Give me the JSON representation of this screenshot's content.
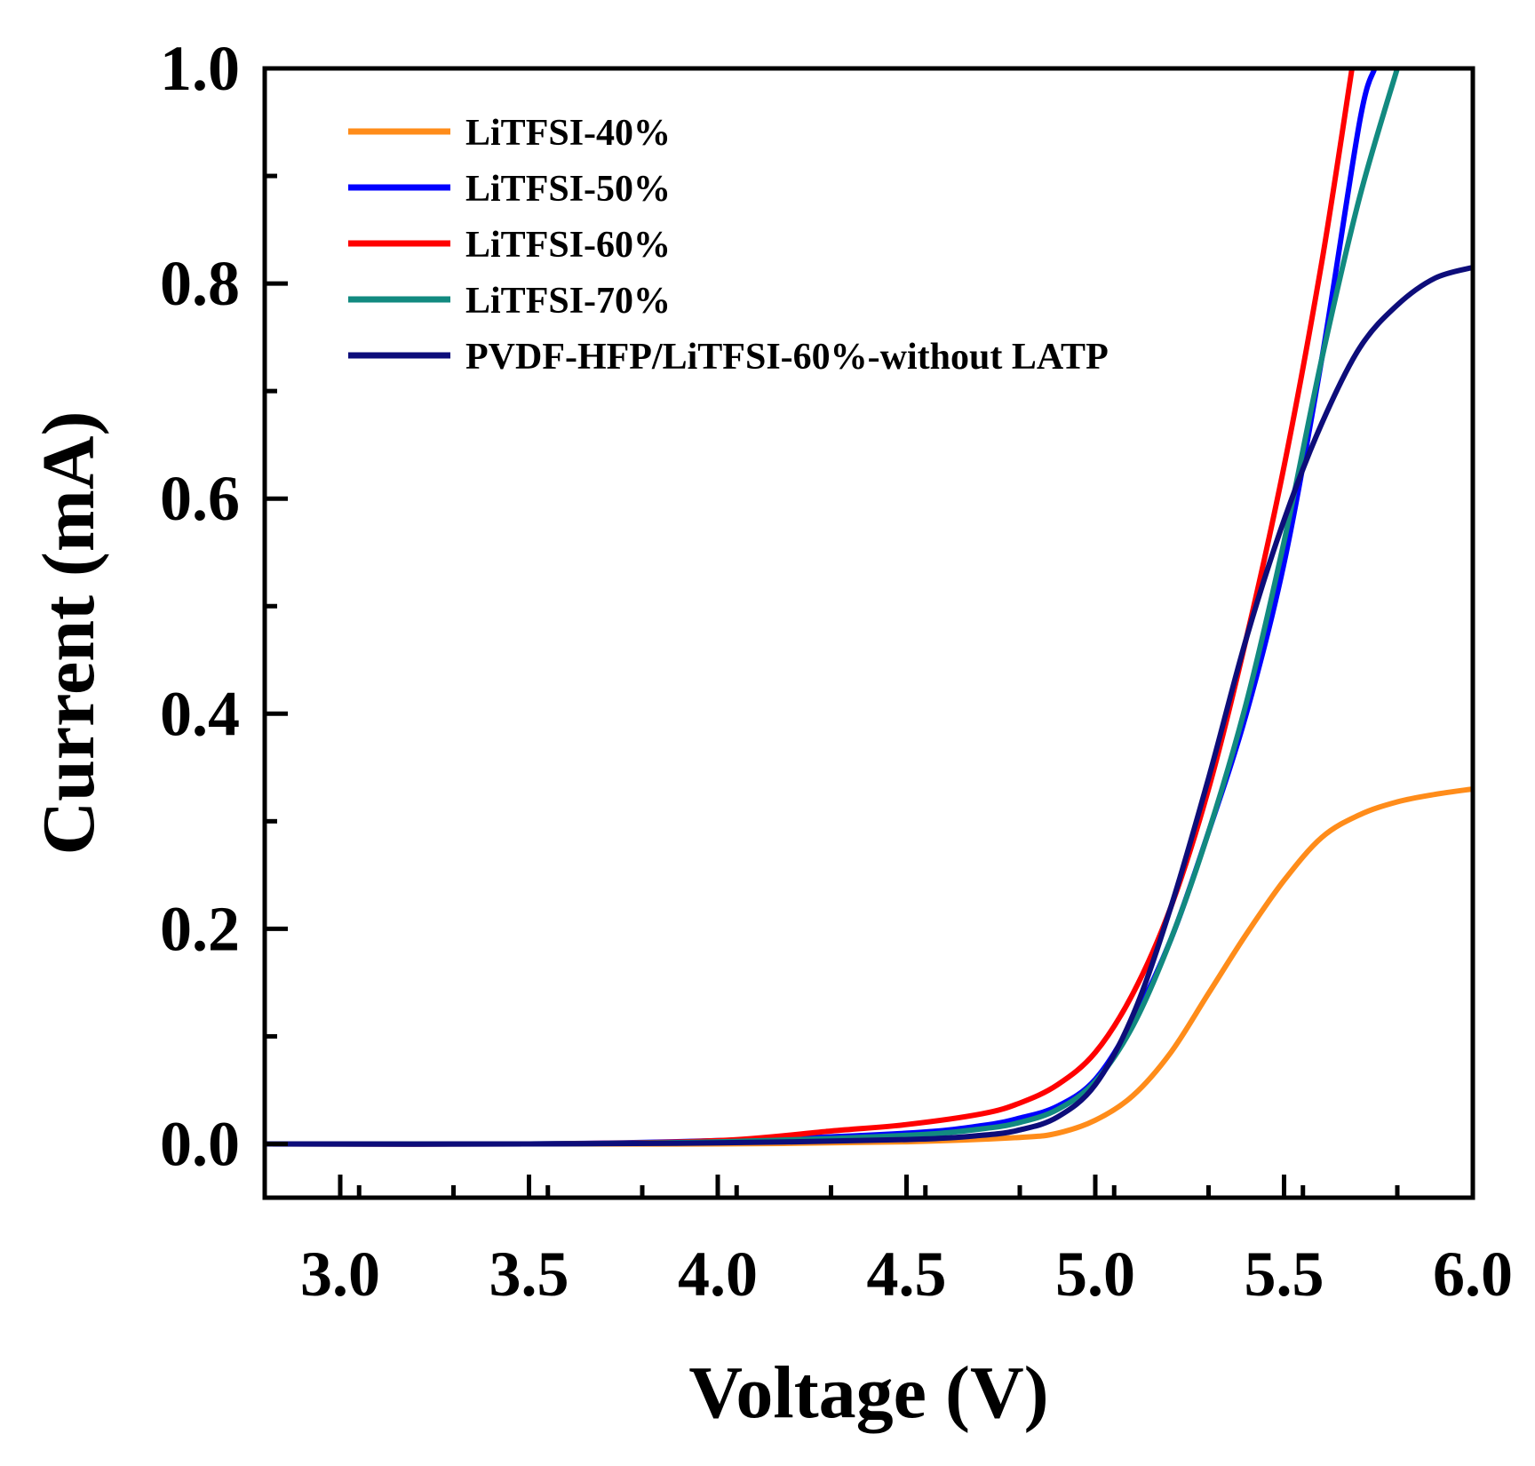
{
  "chart_data": {
    "type": "line",
    "title": "",
    "xlabel": "Voltage (V)",
    "ylabel": "Current (mA)",
    "xlim": [
      2.8,
      6.0
    ],
    "ylim": [
      -0.05,
      1.0
    ],
    "xticks": [
      3.0,
      3.5,
      4.0,
      4.5,
      5.0,
      5.5,
      6.0
    ],
    "xtick_labels": [
      "3.0",
      "3.5",
      "4.0",
      "4.5",
      "5.0",
      "5.5",
      "6.0"
    ],
    "yticks": [
      0.0,
      0.2,
      0.4,
      0.6,
      0.8,
      1.0
    ],
    "ytick_labels": [
      "0.0",
      "0.2",
      "0.4",
      "0.6",
      "0.8",
      "1.0"
    ],
    "grid": false,
    "legend_position": "top-left",
    "series": [
      {
        "name": "LiTFSI-40%",
        "color": "#FF8C1A",
        "points": [
          [
            2.8,
            0.0
          ],
          [
            3.5,
            0.0
          ],
          [
            4.0,
            0.0
          ],
          [
            4.5,
            0.002
          ],
          [
            4.8,
            0.006
          ],
          [
            4.9,
            0.01
          ],
          [
            5.0,
            0.022
          ],
          [
            5.1,
            0.045
          ],
          [
            5.2,
            0.085
          ],
          [
            5.3,
            0.14
          ],
          [
            5.4,
            0.195
          ],
          [
            5.5,
            0.245
          ],
          [
            5.6,
            0.285
          ],
          [
            5.7,
            0.306
          ],
          [
            5.8,
            0.318
          ],
          [
            5.9,
            0.325
          ],
          [
            6.0,
            0.33
          ]
        ]
      },
      {
        "name": "LiTFSI-50%",
        "color": "#0000FF",
        "points": [
          [
            2.8,
            0.0
          ],
          [
            3.5,
            0.0
          ],
          [
            4.0,
            0.003
          ],
          [
            4.5,
            0.01
          ],
          [
            4.7,
            0.017
          ],
          [
            4.8,
            0.024
          ],
          [
            4.9,
            0.035
          ],
          [
            5.0,
            0.06
          ],
          [
            5.1,
            0.115
          ],
          [
            5.2,
            0.19
          ],
          [
            5.3,
            0.29
          ],
          [
            5.4,
            0.4
          ],
          [
            5.5,
            0.54
          ],
          [
            5.6,
            0.73
          ],
          [
            5.7,
            0.95
          ],
          [
            5.74,
            1.0
          ]
        ]
      },
      {
        "name": "LiTFSI-60%",
        "color": "#FF0000",
        "points": [
          [
            2.8,
            0.0
          ],
          [
            3.5,
            0.0
          ],
          [
            4.0,
            0.003
          ],
          [
            4.3,
            0.012
          ],
          [
            4.5,
            0.018
          ],
          [
            4.7,
            0.028
          ],
          [
            4.8,
            0.038
          ],
          [
            4.9,
            0.055
          ],
          [
            5.0,
            0.085
          ],
          [
            5.1,
            0.14
          ],
          [
            5.2,
            0.22
          ],
          [
            5.3,
            0.33
          ],
          [
            5.4,
            0.47
          ],
          [
            5.5,
            0.63
          ],
          [
            5.6,
            0.82
          ],
          [
            5.68,
            1.0
          ]
        ]
      },
      {
        "name": "LiTFSI-70%",
        "color": "#128A80",
        "points": [
          [
            2.8,
            0.0
          ],
          [
            3.5,
            0.0
          ],
          [
            4.0,
            0.002
          ],
          [
            4.5,
            0.008
          ],
          [
            4.7,
            0.014
          ],
          [
            4.8,
            0.02
          ],
          [
            4.9,
            0.032
          ],
          [
            5.0,
            0.058
          ],
          [
            5.1,
            0.11
          ],
          [
            5.2,
            0.19
          ],
          [
            5.3,
            0.29
          ],
          [
            5.4,
            0.41
          ],
          [
            5.5,
            0.56
          ],
          [
            5.6,
            0.73
          ],
          [
            5.7,
            0.88
          ],
          [
            5.8,
            1.0
          ]
        ]
      },
      {
        "name": "PVDF-HFP/LiTFSI-60%-without LATP",
        "color": "#0D0D7A",
        "points": [
          [
            2.8,
            0.0
          ],
          [
            3.5,
            0.0
          ],
          [
            4.0,
            0.001
          ],
          [
            4.5,
            0.004
          ],
          [
            4.7,
            0.008
          ],
          [
            4.8,
            0.013
          ],
          [
            4.9,
            0.025
          ],
          [
            5.0,
            0.055
          ],
          [
            5.1,
            0.12
          ],
          [
            5.2,
            0.22
          ],
          [
            5.3,
            0.34
          ],
          [
            5.4,
            0.47
          ],
          [
            5.5,
            0.58
          ],
          [
            5.6,
            0.67
          ],
          [
            5.7,
            0.74
          ],
          [
            5.8,
            0.78
          ],
          [
            5.9,
            0.805
          ],
          [
            6.0,
            0.815
          ]
        ]
      }
    ]
  }
}
